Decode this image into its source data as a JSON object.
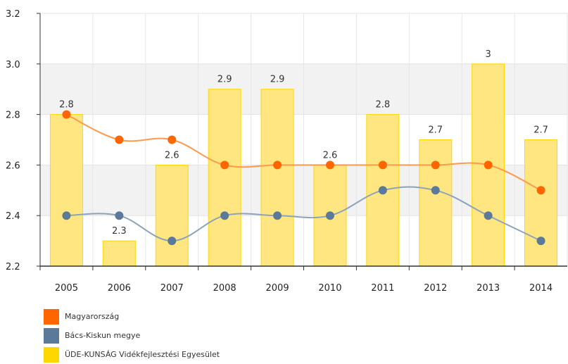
{
  "chart_data": {
    "type": "bar",
    "categories": [
      "2005",
      "2006",
      "2007",
      "2008",
      "2009",
      "2010",
      "2011",
      "2012",
      "2013",
      "2014"
    ],
    "ylim": [
      2.2,
      3.2
    ],
    "yticks": [
      "2.2",
      "2.4",
      "2.6",
      "2.8",
      "3.0",
      "3.2"
    ],
    "grid": "horizontal bands",
    "legend_position": "bottom-left",
    "series": [
      {
        "name": "Magyarország",
        "type": "line",
        "color": "#ff6600",
        "line_color": "#ff9a4d",
        "values": [
          2.8,
          2.7,
          2.7,
          2.6,
          2.6,
          2.6,
          2.6,
          2.6,
          2.6,
          2.5
        ]
      },
      {
        "name": "Bács-Kiskun megye",
        "type": "line",
        "color": "#5b7a99",
        "line_color": "#8ca3b9",
        "values": [
          2.4,
          2.4,
          2.3,
          2.4,
          2.4,
          2.4,
          2.5,
          2.5,
          2.4,
          2.3
        ]
      },
      {
        "name": "ÜDE-KUNSÁG Vidékfejlesztési Egyesület",
        "type": "bar",
        "color": "#ffd700",
        "bar_fill": "#ffe680",
        "values": [
          2.8,
          2.3,
          2.6,
          2.9,
          2.9,
          2.6,
          2.8,
          2.7,
          3,
          2.7
        ],
        "data_labels": [
          "2.8",
          "2.3",
          "2.6",
          "2.9",
          "2.9",
          "2.6",
          "2.8",
          "2.7",
          "3",
          "2.7"
        ]
      }
    ]
  }
}
